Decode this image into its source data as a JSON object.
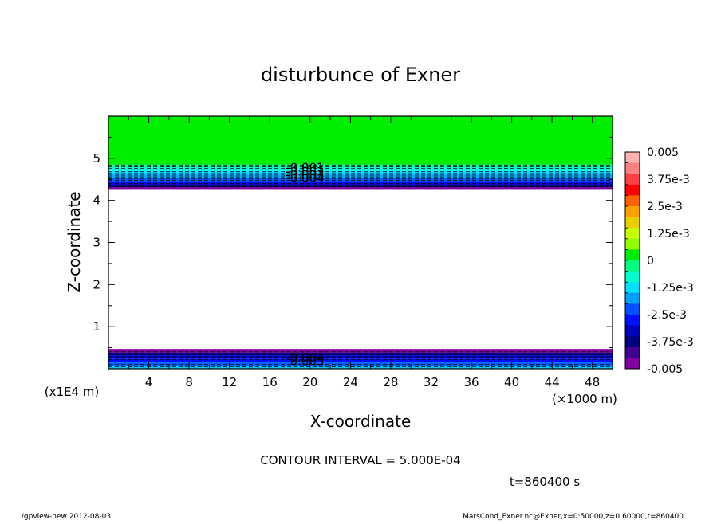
{
  "chart_data": {
    "type": "contour",
    "title": "disturbunce of Exner",
    "xlabel": "X-coordinate",
    "ylabel": "Z-coordinate",
    "x_unit": "(×1000 m)",
    "y_unit": "(x1E4 m)",
    "xlim": [
      0,
      50
    ],
    "ylim": [
      0,
      6
    ],
    "x_ticks": [
      "4",
      "8",
      "12",
      "16",
      "20",
      "24",
      "28",
      "32",
      "36",
      "40",
      "44",
      "48"
    ],
    "y_ticks": [
      "1",
      "2",
      "3",
      "4",
      "5"
    ],
    "colorbar": {
      "vmin": -0.005,
      "vmax": 0.005,
      "labels": [
        "0.005",
        "3.75e-3",
        "2.5e-3",
        "1.25e-3",
        "0",
        "-1.25e-3",
        "-2.5e-3",
        "-3.75e-3",
        "-0.005"
      ]
    },
    "contour_labels_top": [
      "-0.001",
      "-0.002",
      "-0.003",
      "-0.004"
    ],
    "contour_labels_bottom": [
      "-0.004",
      "-0.005"
    ],
    "regions": [
      {
        "z_range": [
          4.85,
          6.0
        ],
        "value": 0
      },
      {
        "z_range": [
          4.3,
          4.85
        ],
        "value": "-0.0005 to -0.005"
      },
      {
        "z_range": [
          0.45,
          4.3
        ],
        "value": "blank"
      },
      {
        "z_range": [
          0.0,
          0.45
        ],
        "value": "-0.005 to -0.0025"
      }
    ]
  },
  "contour_interval": "CONTOUR INTERVAL = 5.000E-04",
  "time_label": "t=860400 s",
  "footer_left": "./gpview-new  2012-08-03",
  "footer_right": "MarsCond_Exner.nc@Exner,x=0:50000,z=0:60000,t=860400",
  "colors": {
    "green_zero": "#00ee00",
    "purple_min": "#8000a0",
    "navy": "#000080",
    "blue": "#0010ff",
    "cyan": "#00e0ff"
  }
}
